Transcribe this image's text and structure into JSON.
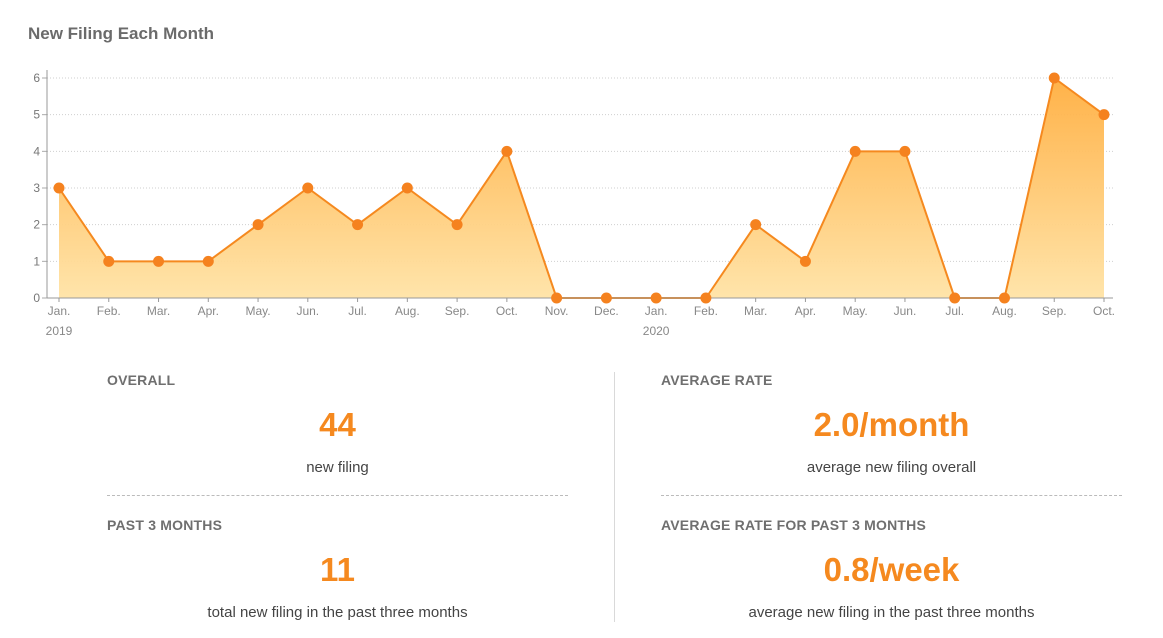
{
  "chart_data": {
    "type": "area",
    "title": "New Filing Each Month",
    "categories": [
      "Jan.",
      "Feb.",
      "Mar.",
      "Apr.",
      "May.",
      "Jun.",
      "Jul.",
      "Aug.",
      "Sep.",
      "Oct.",
      "Nov.",
      "Dec.",
      "Jan.",
      "Feb.",
      "Mar.",
      "Apr.",
      "May.",
      "Jun.",
      "Jul.",
      "Aug.",
      "Sep.",
      "Oct."
    ],
    "year_labels": [
      {
        "index": 0,
        "label": "2019"
      },
      {
        "index": 12,
        "label": "2020"
      }
    ],
    "values": [
      3,
      1,
      1,
      1,
      2,
      3,
      2,
      3,
      2,
      4,
      0,
      0,
      0,
      0,
      2,
      1,
      4,
      4,
      0,
      0,
      6,
      5
    ],
    "ylim": [
      0,
      6
    ],
    "yticks": [
      0,
      1,
      2,
      3,
      4,
      5,
      6
    ],
    "grid": true,
    "line_color": "#f5891f",
    "fill_top_color": "#ffae3f",
    "fill_bottom_color": "#ffe3a6",
    "marker_color": "#f5821f"
  },
  "stats": {
    "overall": {
      "heading": "OVERALL",
      "value": "44",
      "caption": "new filing"
    },
    "average_rate": {
      "heading": "AVERAGE RATE",
      "value": "2.0/month",
      "caption": "average new filing overall"
    },
    "past_3_months": {
      "heading": "PAST 3 MONTHS",
      "value": "11",
      "caption": "total new filing in the past three months"
    },
    "average_rate_past_3_months": {
      "heading": "AVERAGE RATE FOR PAST 3 MONTHS",
      "value": "0.8/week",
      "caption": "average new filing in the past three months"
    }
  }
}
